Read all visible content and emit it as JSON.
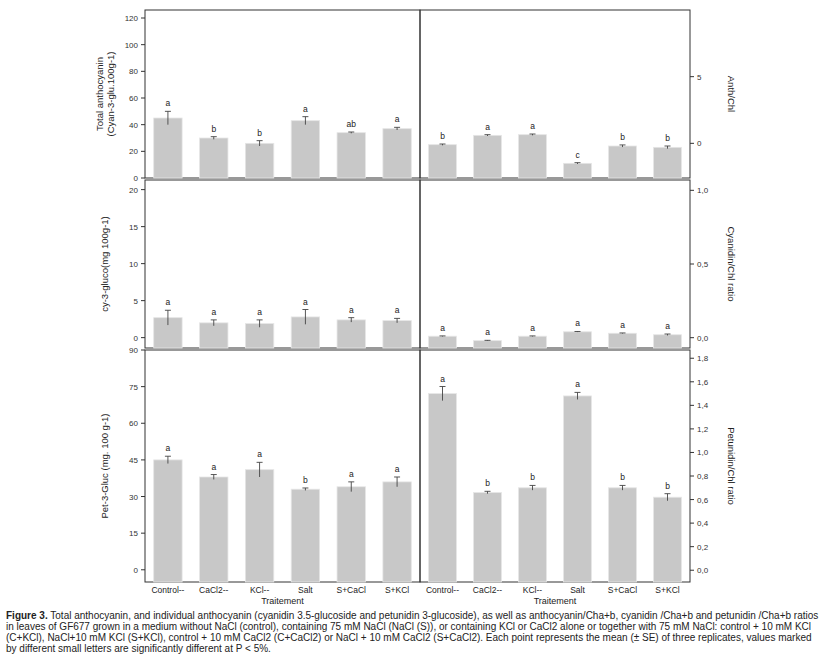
{
  "chart_data": [
    {
      "type": "bar",
      "ylabel": "Total anthocyanin\n(Cyan-3-glu.100g-1)",
      "categories": [
        "Control--",
        "CaCl2--",
        "KCl--",
        "Salt",
        "S+CaCl",
        "S+KCl"
      ],
      "values": [
        45,
        30,
        26,
        43,
        34,
        37
      ],
      "errors": [
        5,
        1,
        2,
        3,
        0.5,
        1
      ],
      "letters": [
        "a",
        "b",
        "b",
        "a",
        "ab",
        "a"
      ],
      "ylim": [
        0,
        126
      ],
      "yticks": [
        0,
        20,
        40,
        60,
        80,
        100,
        120
      ],
      "color": "#c8c8c8",
      "tick_labels": "y"
    },
    {
      "type": "bar",
      "ylabel": "Anth/Chl",
      "categories": [
        "Control--",
        "CaCl2--",
        "KCl--",
        "Salt",
        "S+CaCl",
        "S+KCl"
      ],
      "values": [
        -0.1,
        0.6,
        0.65,
        -1.5,
        -0.2,
        -0.3
      ],
      "errors": [
        0.05,
        0.05,
        0.05,
        0.05,
        0.08,
        0.1
      ],
      "letters": [
        "b",
        "a",
        "a",
        "c",
        "b",
        "b"
      ],
      "ylim": [
        -2.6,
        10
      ],
      "yticks": [
        0,
        5
      ],
      "color": "#c8c8c8",
      "tick_labels": "y"
    },
    {
      "type": "bar",
      "ylabel": "cy-3-gluco(mg 100g-1)",
      "categories": [
        "Control--",
        "CaCl2--",
        "KCl--",
        "Salt",
        "S+CaCl",
        "S+KCl"
      ],
      "values": [
        2.7,
        2.0,
        1.9,
        2.8,
        2.4,
        2.3
      ],
      "errors": [
        1,
        0.4,
        0.5,
        1,
        0.3,
        0.3
      ],
      "letters": [
        "a",
        "a",
        "a",
        "a",
        "a",
        "a"
      ],
      "ylim": [
        -1.4,
        21.3
      ],
      "yticks": [
        0,
        5,
        10,
        15,
        20
      ],
      "color": "#c8c8c8",
      "tick_labels": "y"
    },
    {
      "type": "bar",
      "ylabel": "Cyanidin/Chl ratio",
      "categories": [
        "Control--",
        "CaCl2--",
        "KCl--",
        "Salt",
        "S+CaCl",
        "S+KCl"
      ],
      "values": [
        0.01,
        -0.02,
        0.01,
        0.04,
        0.03,
        0.02
      ],
      "errors": [
        0.002,
        0.002,
        0.002,
        0.002,
        0.002,
        0.005
      ],
      "letters": [
        "a",
        "a",
        "a",
        "a",
        "a",
        "a"
      ],
      "ylim": [
        -0.07,
        1.07
      ],
      "yticks": [
        {
          "value": 0,
          "label": "0,0"
        },
        {
          "value": 0.5,
          "label": "0,5"
        },
        {
          "value": 1,
          "label": "1,0"
        }
      ],
      "color": "#c8c8c8",
      "tick_labels": "y"
    },
    {
      "type": "bar",
      "ylabel": "Pet-3-Gluc (mg. 100 g-1)",
      "xlabel": "Traitement",
      "categories": [
        "Control--",
        "CaCl2--",
        "KCl--",
        "Salt",
        "S+CaCl",
        "S+KCl"
      ],
      "values": [
        45,
        38,
        41,
        33,
        34,
        36
      ],
      "errors": [
        1.5,
        1,
        3,
        0.5,
        2,
        2
      ],
      "letters": [
        "a",
        "a",
        "a",
        "b",
        "a",
        "a"
      ],
      "ylim": [
        -5,
        90
      ],
      "yticks": [
        0,
        15,
        30,
        45,
        60,
        75,
        90
      ],
      "color": "#c8c8c8"
    },
    {
      "type": "bar",
      "ylabel": "Petunidin/Chl ratio",
      "xlabel": "Traitement",
      "categories": [
        "Control--",
        "CaCl2--",
        "KCl--",
        "Salt",
        "S+CaCl",
        "S+KCl"
      ],
      "values": [
        1.5,
        0.66,
        0.7,
        1.48,
        0.7,
        0.62
      ],
      "errors": [
        0.06,
        0.01,
        0.02,
        0.03,
        0.02,
        0.03
      ],
      "letters": [
        "a",
        "b",
        "b",
        "a",
        "b",
        "b"
      ],
      "ylim": [
        -0.1,
        1.87
      ],
      "yticks": [
        {
          "value": 0,
          "label": "0,0"
        },
        {
          "value": 0.2,
          "label": "0,2"
        },
        {
          "value": 0.4,
          "label": "0,4"
        },
        {
          "value": 0.6,
          "label": "0,6"
        },
        {
          "value": 0.8,
          "label": "0,8"
        },
        {
          "value": 1,
          "label": "1,0"
        },
        {
          "value": 1.2,
          "label": "1,2"
        },
        {
          "value": 1.4,
          "label": "1,4"
        },
        {
          "value": 1.6,
          "label": "1,6"
        },
        {
          "value": 1.8,
          "label": "1,8"
        }
      ],
      "color": "#c8c8c8"
    }
  ],
  "caption_label": "Figure 3.",
  "caption": "Total anthocyanin, and individual anthocyanin (cyanidin 3.5-glucoside and petunidin 3-glucoside), as well as anthocyanin/Cha+b, cyanidin /Cha+b and petunidin /Cha+b ratios in leaves of GF677 grown in a medium without NaCl (control), containing 75 mM NaCl (NaCl (S)), or containing KCl or CaCl2 alone or together with 75 mM NaCl: control + 10 mM KCl (C+KCl), NaCl+10 mM KCl (S+KCl), control + 10 mM CaCl2 (C+CaCl2) or NaCl + 10 mM CaCl2 (S+CaCl2). Each point represents the mean (± SE) of three replicates, values marked by different small letters are significantly different at P < 5%."
}
